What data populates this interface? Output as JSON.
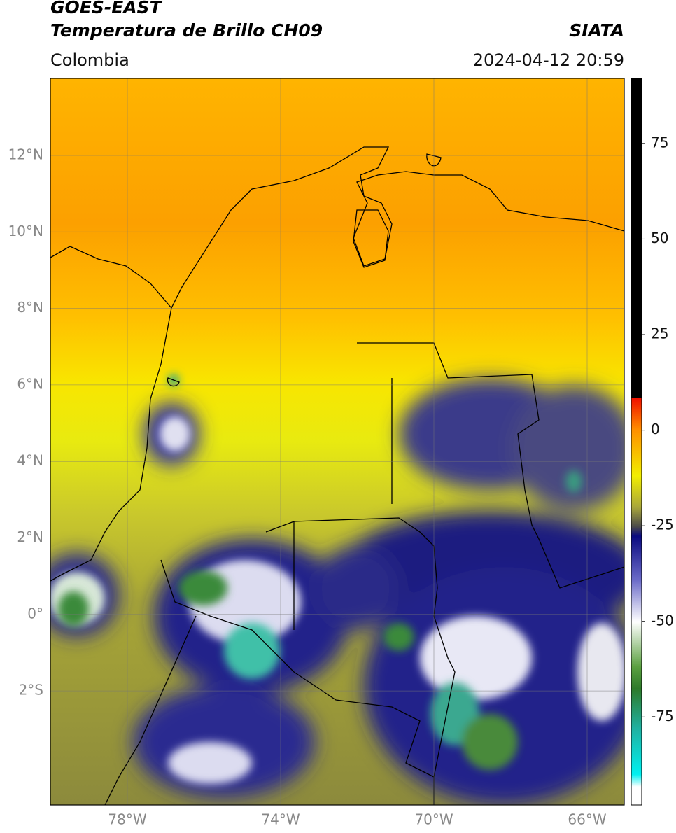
{
  "header": {
    "title": "GOES-EAST",
    "subtitle": "Temperatura de Brillo CH09",
    "source": "SIATA",
    "region": "Colombia",
    "datetime": "2024-04-12 20:59"
  },
  "map": {
    "lat_labels": [
      "12°N",
      "10°N",
      "8°N",
      "6°N",
      "4°N",
      "2°N",
      "0°",
      "2°S"
    ],
    "lon_labels": [
      "78°W",
      "74°W",
      "70°W",
      "66°W"
    ]
  },
  "colorbar": {
    "lim": [
      -98,
      92
    ],
    "ticks": [
      75,
      50,
      25,
      0,
      -25,
      -50,
      -75
    ]
  }
}
